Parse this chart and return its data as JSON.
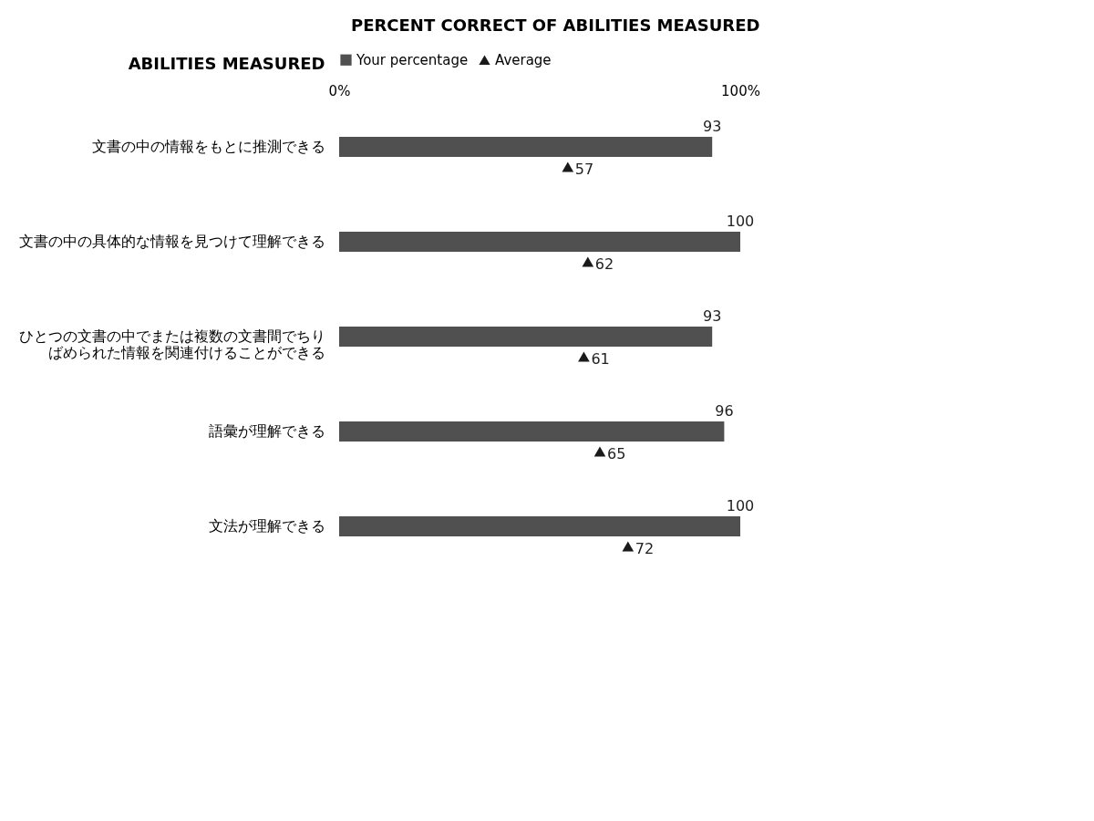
{
  "chart_data": {
    "type": "bar",
    "orientation": "horizontal",
    "title": "PERCENT CORRECT OF ABILITIES MEASURED",
    "ylabel": "ABILITIES MEASURED",
    "categories": [
      "文書の中の情報をもとに推測できる",
      "文書の中の具体的な情報を見つけて理解できる",
      "ひとつの文書の中でまたは複数の文書間でちりばめられた情報を関連付けることができる",
      "語彙が理解できる",
      "文法が理解できる"
    ],
    "series": [
      {
        "name": "Your percentage",
        "type": "bar",
        "color": "#505050",
        "values": [
          93,
          100,
          93,
          96,
          100
        ]
      },
      {
        "name": "Average",
        "type": "scatter",
        "marker": "triangle",
        "color": "#1a1a1a",
        "values": [
          57,
          62,
          61,
          65,
          72
        ]
      }
    ],
    "xlim": [
      0,
      100
    ],
    "xticks": [
      {
        "value": 0,
        "label": "0%"
      },
      {
        "value": 100,
        "label": "100%"
      }
    ],
    "data_labels": true,
    "legend": "top",
    "grid": false
  }
}
